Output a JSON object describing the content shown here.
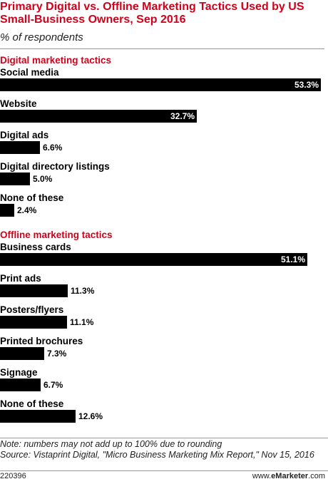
{
  "chart_data": {
    "type": "bar",
    "orientation": "horizontal",
    "title": "Primary Digital vs. Offline Marketing Tactics Used by US Small-Business Owners, Sep 2016",
    "subtitle": "% of respondents",
    "value_suffix": "%",
    "xlim": [
      0,
      54.5
    ],
    "groups": [
      {
        "name": "Digital marketing tactics",
        "categories": [
          "Social media",
          "Website",
          "Digital ads",
          "Digital directory listings",
          "None of these"
        ],
        "values": [
          53.3,
          32.7,
          6.6,
          5.0,
          2.4
        ],
        "labels": [
          "53.3%",
          "32.7%",
          "6.6%",
          "5.0%",
          "2.4%"
        ]
      },
      {
        "name": "Offline marketing tactics",
        "categories": [
          "Business cards",
          "Print ads",
          "Posters/flyers",
          "Printed brochures",
          "Signage",
          "None of these"
        ],
        "values": [
          51.1,
          11.3,
          11.1,
          7.3,
          6.7,
          12.6
        ],
        "labels": [
          "51.1%",
          "11.3%",
          "11.1%",
          "7.3%",
          "6.7%",
          "12.6%"
        ]
      }
    ],
    "bar_color": "#000000",
    "accent_color": "#d0021b"
  },
  "notes": {
    "note": "Note: numbers may not add up to 100% due to rounding",
    "source": "Source: Vistaprint Digital, \"Micro Business Marketing Mix Report,\" Nov 15, 2016"
  },
  "footer": {
    "id": "220396",
    "brand_prefix": "www.",
    "brand_name": "eMarketer",
    "brand_suffix": ".com"
  }
}
